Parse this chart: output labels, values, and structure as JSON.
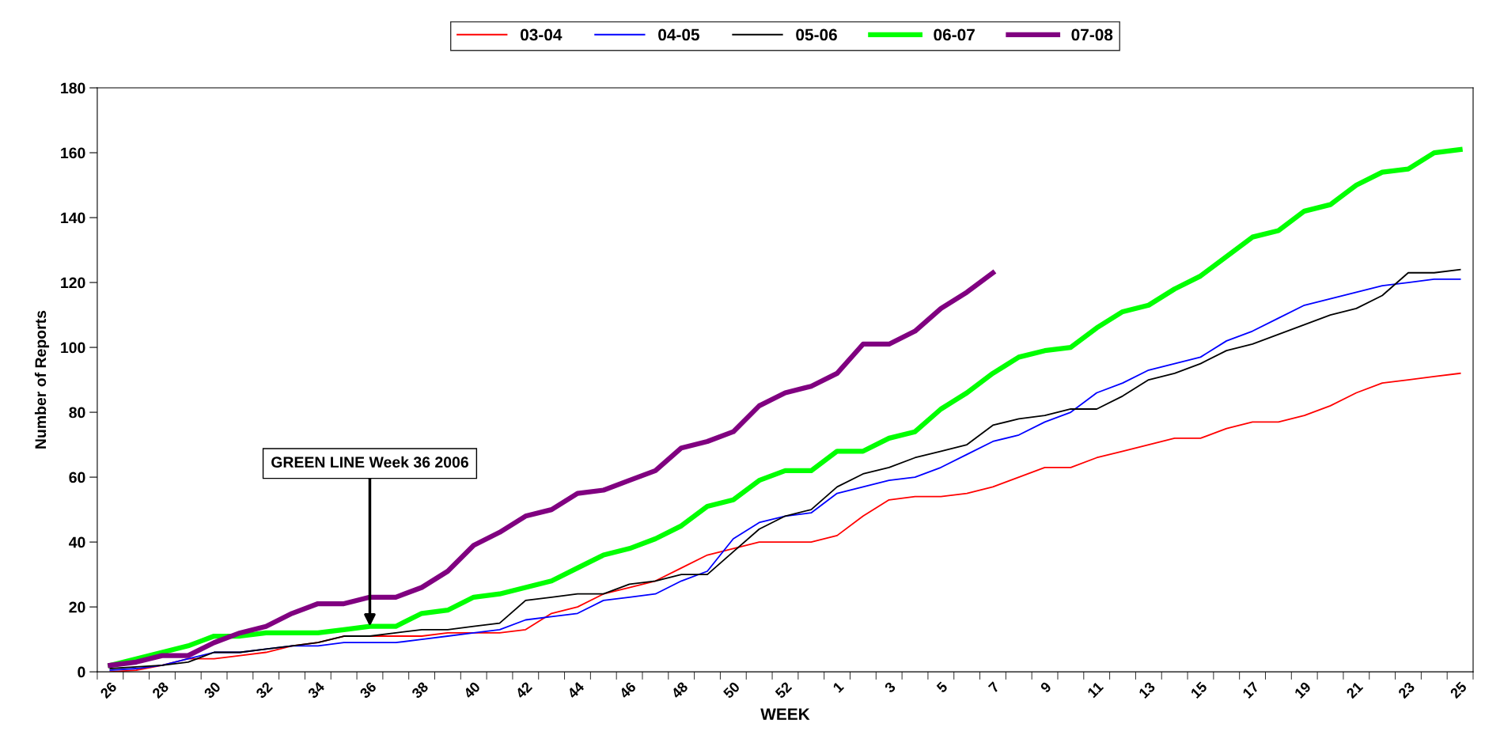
{
  "chart_data": {
    "type": "line",
    "xlabel": "WEEK",
    "ylabel": "Number of Reports",
    "categories": [
      "26",
      null,
      "28",
      null,
      "30",
      null,
      "32",
      null,
      "34",
      null,
      "36",
      null,
      "38",
      null,
      "40",
      null,
      "42",
      null,
      "44",
      null,
      "46",
      null,
      "48",
      null,
      "50",
      null,
      "52",
      null,
      "1",
      null,
      "3",
      null,
      "5",
      null,
      "7",
      null,
      "9",
      null,
      "11",
      null,
      "13",
      null,
      "15",
      null,
      "17",
      null,
      "19",
      null,
      "21",
      null,
      "23",
      null,
      "25"
    ],
    "ylim": [
      0,
      180
    ],
    "yticks": [
      0,
      20,
      40,
      60,
      80,
      100,
      120,
      140,
      160,
      180
    ],
    "grid": false,
    "legend": "top",
    "marker": "none",
    "line_style": "solid",
    "annotations": [
      {
        "text": "GREEN LINE Week 36 2006",
        "x": "36",
        "y": 14
      }
    ],
    "series": [
      {
        "name": "03-04",
        "color": "#ff0000",
        "values": [
          0,
          0.5,
          2,
          4,
          4,
          5,
          6,
          8,
          9,
          11,
          11,
          11,
          11,
          12,
          12,
          12,
          13,
          18,
          20,
          24,
          26,
          28,
          32,
          36,
          38,
          40,
          40,
          40,
          42,
          48,
          53,
          54,
          54,
          55,
          57,
          60,
          63,
          63,
          66,
          68,
          70,
          72,
          72,
          75,
          77,
          77,
          79,
          82,
          86,
          89,
          90,
          91,
          92
        ]
      },
      {
        "name": "04-05",
        "color": "#0000ff",
        "values": [
          0.5,
          1,
          2,
          4,
          6,
          6,
          7,
          8,
          8,
          9,
          9,
          9,
          10,
          11,
          12,
          13,
          16,
          17,
          18,
          22,
          23,
          24,
          28,
          31,
          41,
          46,
          48,
          49,
          55,
          57,
          59,
          60,
          63,
          67,
          71,
          73,
          77,
          80,
          86,
          89,
          93,
          95,
          97,
          102,
          105,
          109,
          113,
          115,
          117,
          119,
          120,
          121,
          121
        ]
      },
      {
        "name": "05-06",
        "color": "#000000",
        "values": [
          1,
          1.5,
          2,
          3,
          6,
          6,
          7,
          8,
          9,
          11,
          11,
          12,
          13,
          13,
          14,
          15,
          22,
          23,
          24,
          24,
          27,
          28,
          30,
          30,
          37,
          44,
          48,
          50,
          57,
          61,
          63,
          66,
          68,
          70,
          76,
          78,
          79,
          81,
          81,
          85,
          90,
          92,
          95,
          99,
          101,
          104,
          107,
          110,
          112,
          116,
          123,
          123,
          124
        ]
      },
      {
        "name": "06-07",
        "color": "#00ff00",
        "values": [
          2,
          4,
          6,
          8,
          11,
          11,
          12,
          12,
          12,
          13,
          14,
          14,
          18,
          19,
          23,
          24,
          26,
          28,
          32,
          36,
          38,
          41,
          45,
          51,
          53,
          59,
          62,
          62,
          68,
          68,
          72,
          74,
          81,
          86,
          92,
          97,
          99,
          100,
          106,
          111,
          113,
          118,
          122,
          128,
          134,
          136,
          142,
          144,
          150,
          154,
          155,
          160,
          161
        ]
      },
      {
        "name": "07-08",
        "color": "#800080",
        "values": [
          2,
          3,
          5,
          5,
          9,
          12,
          14,
          18,
          21,
          21,
          23,
          23,
          26,
          31,
          39,
          43,
          48,
          50,
          55,
          56,
          59,
          62,
          69,
          71,
          74,
          82,
          86,
          88,
          92,
          101,
          101,
          105,
          112,
          117,
          123,
          null,
          null,
          null,
          null,
          null,
          null,
          null,
          null,
          null,
          null,
          null,
          null,
          null,
          null,
          null,
          null,
          null,
          null
        ]
      }
    ]
  }
}
